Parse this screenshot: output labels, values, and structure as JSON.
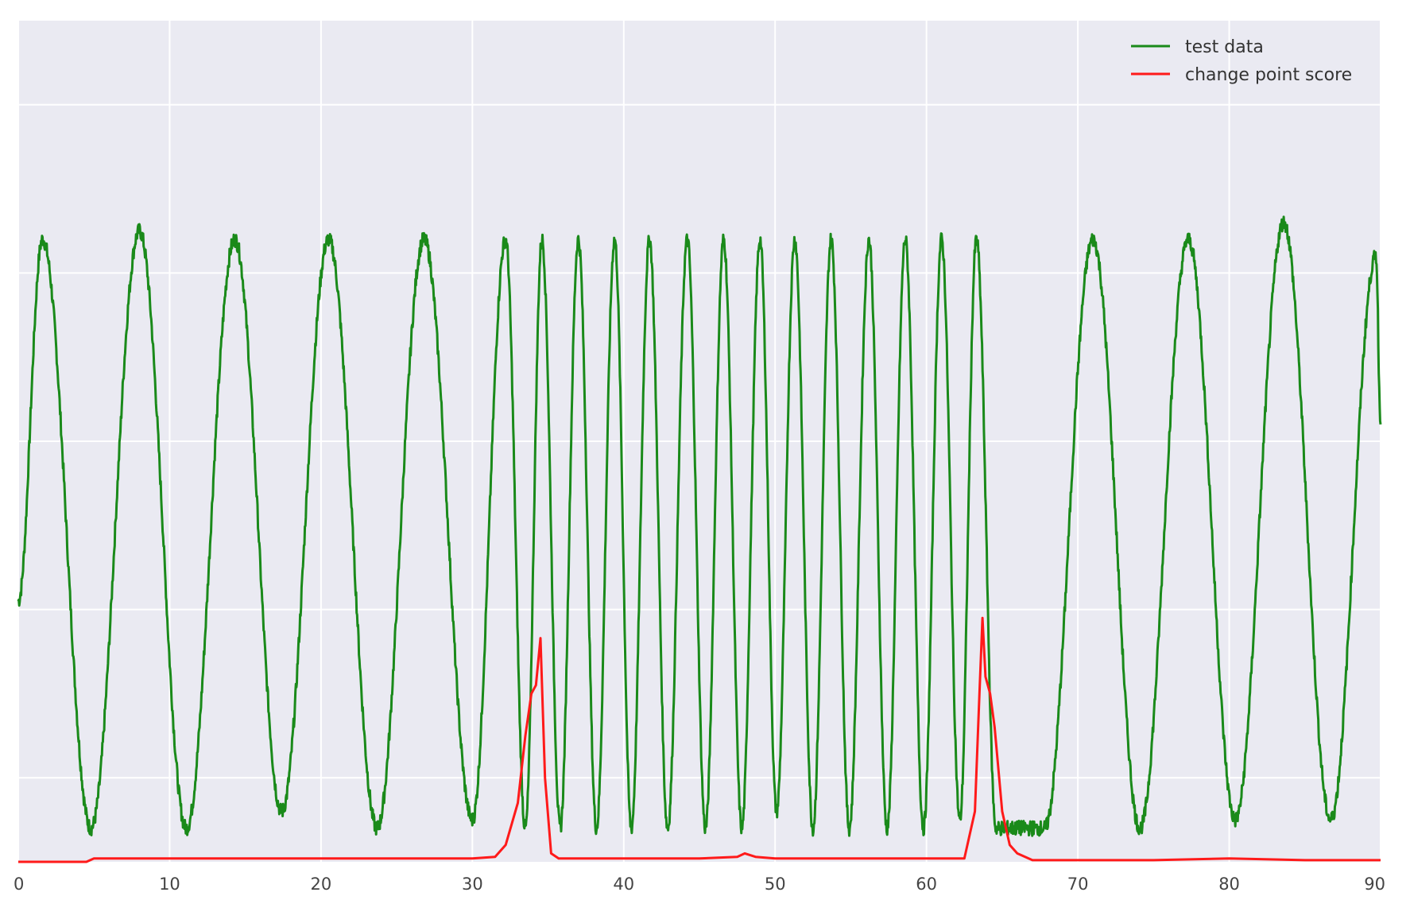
{
  "chart_data": {
    "type": "line",
    "title": "",
    "xlabel": "",
    "ylabel": "",
    "xlim": [
      0,
      90
    ],
    "ylim": [
      -1.5,
      3.5
    ],
    "grid": true,
    "legend_placement": "top-right",
    "x_ticks": [
      0,
      10,
      20,
      30,
      40,
      50,
      60,
      70,
      80,
      90
    ],
    "x_tick_labels": [
      "0",
      "10",
      "20",
      "30",
      "40",
      "50",
      "60",
      "70",
      "80",
      "90"
    ],
    "y_gridlines": [
      -1.0,
      0.0,
      1.0,
      2.0,
      3.0
    ],
    "y_tick_labels_shown": false,
    "colors": {
      "background": "#eaeaf2",
      "grid": "#ffffff",
      "test_data": "#1a8a1a",
      "change_point_score": "#ff1a1a"
    },
    "series": [
      {
        "name": "test data",
        "color": "#1a8a1a",
        "description_points": {
          "x": [
            0.0,
            1.6,
            4.8,
            8.0,
            11.1,
            14.3,
            17.4,
            20.5,
            23.7,
            26.8,
            30.0,
            32.2,
            33.5,
            34.6,
            35.8,
            37.0,
            38.2,
            39.4,
            40.5,
            41.7,
            42.9,
            44.2,
            45.4,
            46.6,
            47.8,
            49.0,
            50.1,
            51.3,
            52.5,
            53.7,
            54.9,
            56.2,
            57.4,
            58.6,
            59.8,
            61.0,
            62.2,
            63.3,
            64.6,
            67.8,
            71.0,
            74.1,
            77.3,
            80.4,
            83.6,
            86.7,
            89.7,
            90.0
          ],
          "y": [
            0.05,
            2.2,
            -1.3,
            2.25,
            -1.3,
            2.2,
            -1.2,
            2.2,
            -1.3,
            2.2,
            -1.25,
            2.2,
            -1.3,
            2.2,
            -1.3,
            2.2,
            -1.3,
            2.2,
            -1.3,
            2.2,
            -1.3,
            2.2,
            -1.3,
            2.2,
            -1.3,
            2.2,
            -1.2,
            2.2,
            -1.3,
            2.2,
            -1.3,
            2.2,
            -1.3,
            2.2,
            -1.3,
            2.2,
            -1.25,
            2.2,
            -1.3,
            -1.3,
            2.2,
            -1.3,
            2.2,
            -1.25,
            2.3,
            -1.25,
            2.1,
            1.1
          ]
        }
      },
      {
        "name": "change point score",
        "color": "#ff1a1a",
        "points": {
          "x": [
            0,
            4.5,
            5.0,
            10,
            20,
            30,
            31.5,
            32.2,
            33.0,
            33.5,
            33.9,
            34.2,
            34.5,
            34.8,
            35.2,
            35.7,
            36.5,
            40,
            45,
            47.5,
            48.0,
            48.7,
            50,
            55,
            60,
            62.5,
            63.2,
            63.5,
            63.7,
            63.9,
            64.2,
            64.5,
            65.0,
            65.5,
            66.0,
            67.0,
            70,
            75,
            80,
            85,
            90
          ],
          "y": [
            -1.5,
            -1.5,
            -1.48,
            -1.48,
            -1.48,
            -1.48,
            -1.47,
            -1.4,
            -1.15,
            -0.75,
            -0.5,
            -0.45,
            -0.17,
            -1.0,
            -1.45,
            -1.48,
            -1.48,
            -1.48,
            -1.48,
            -1.47,
            -1.45,
            -1.47,
            -1.48,
            -1.48,
            -1.48,
            -1.48,
            -1.2,
            -0.5,
            -0.05,
            -0.4,
            -0.5,
            -0.7,
            -1.2,
            -1.4,
            -1.45,
            -1.49,
            -1.49,
            -1.49,
            -1.48,
            -1.49,
            -1.49
          ]
        }
      }
    ]
  }
}
